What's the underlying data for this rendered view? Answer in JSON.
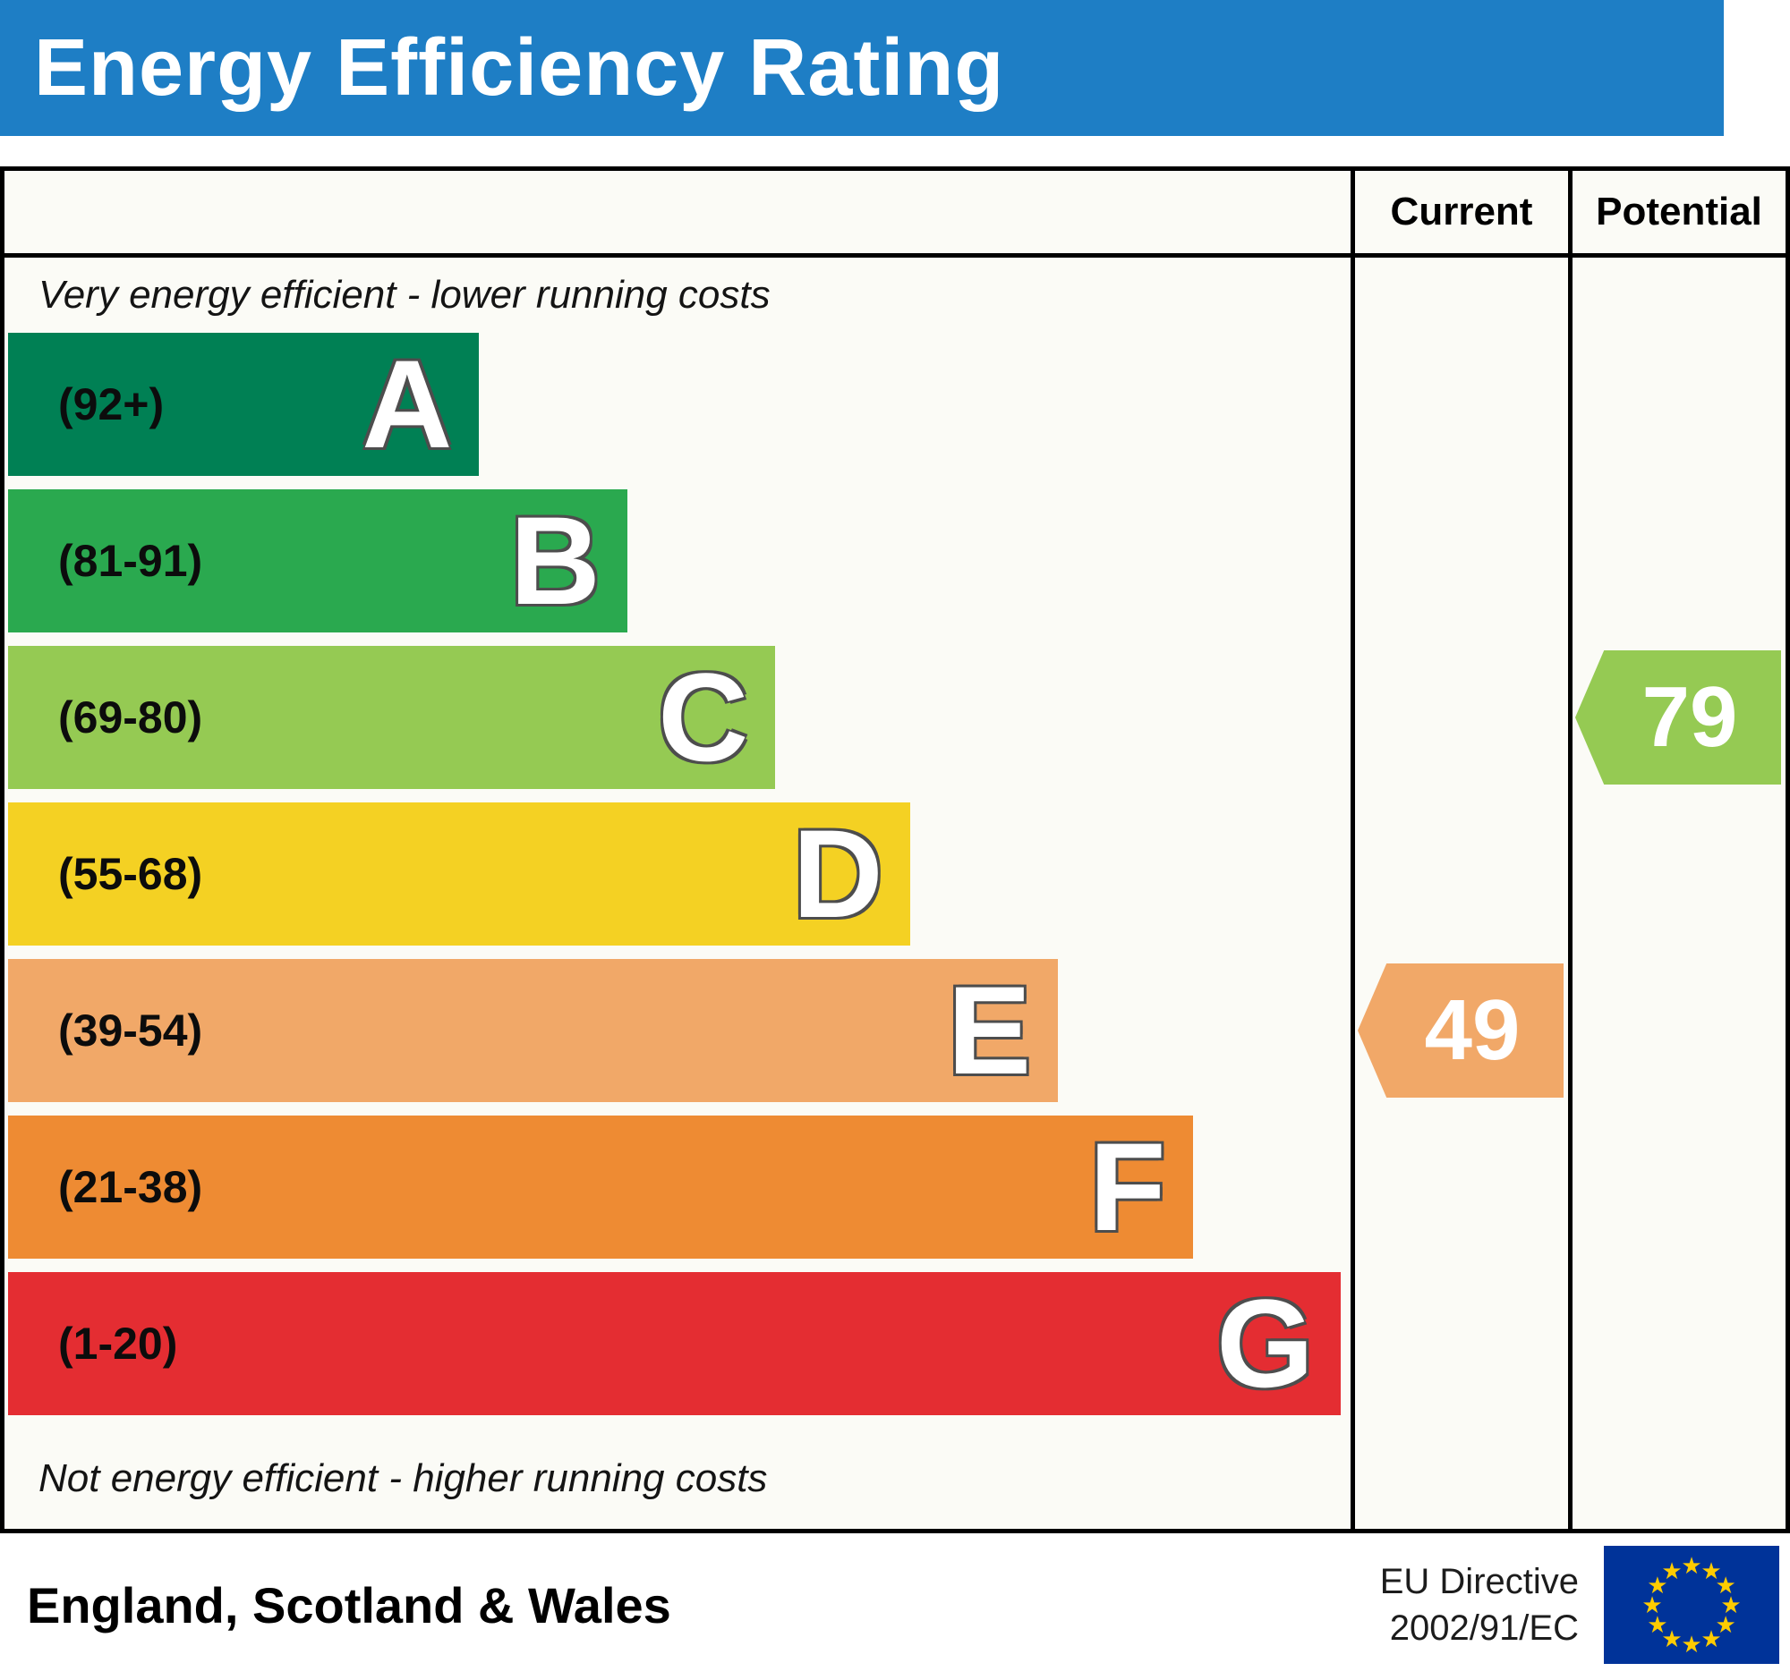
{
  "title": "Energy Efficiency Rating",
  "columns": {
    "current": "Current",
    "potential": "Potential"
  },
  "notes": {
    "top": "Very energy efficient - lower running costs",
    "bottom": "Not energy efficient - higher running costs"
  },
  "footer": {
    "region": "England, Scotland & Wales",
    "directive": [
      "EU Directive",
      "2002/91/EC"
    ],
    "flag_colors": {
      "field": "#003399",
      "stars": "#ffcc00"
    }
  },
  "colors": {
    "header_bar": "#1e7ec5",
    "border": "#000000",
    "chart_bg": "#fbfbf6"
  },
  "chart_data": {
    "type": "bar",
    "orientation": "horizontal",
    "title": "Energy Efficiency Rating",
    "value_range": [
      1,
      100
    ],
    "categories": [
      "A",
      "B",
      "C",
      "D",
      "E",
      "F",
      "G"
    ],
    "bands": [
      {
        "letter": "A",
        "range_label": "(92+)",
        "min": 92,
        "max": 100,
        "color": "#008054",
        "width_pct": 35
      },
      {
        "letter": "B",
        "range_label": "(81-91)",
        "min": 81,
        "max": 91,
        "color": "#2aa94f",
        "width_pct": 46
      },
      {
        "letter": "C",
        "range_label": "(69-80)",
        "min": 69,
        "max": 80,
        "color": "#95ca53",
        "width_pct": 57
      },
      {
        "letter": "D",
        "range_label": "(55-68)",
        "min": 55,
        "max": 68,
        "color": "#f4d123",
        "width_pct": 67
      },
      {
        "letter": "E",
        "range_label": "(39-54)",
        "min": 39,
        "max": 54,
        "color": "#f1a868",
        "width_pct": 78
      },
      {
        "letter": "F",
        "range_label": "(21-38)",
        "min": 21,
        "max": 38,
        "color": "#ee8b33",
        "width_pct": 88
      },
      {
        "letter": "G",
        "range_label": "(1-20)",
        "min": 1,
        "max": 20,
        "color": "#e42d32",
        "width_pct": 99
      }
    ],
    "markers": [
      {
        "column": "current",
        "value": 49,
        "band": "E",
        "color": "#f1a868"
      },
      {
        "column": "potential",
        "value": 79,
        "band": "C",
        "color": "#95ca53"
      }
    ]
  }
}
